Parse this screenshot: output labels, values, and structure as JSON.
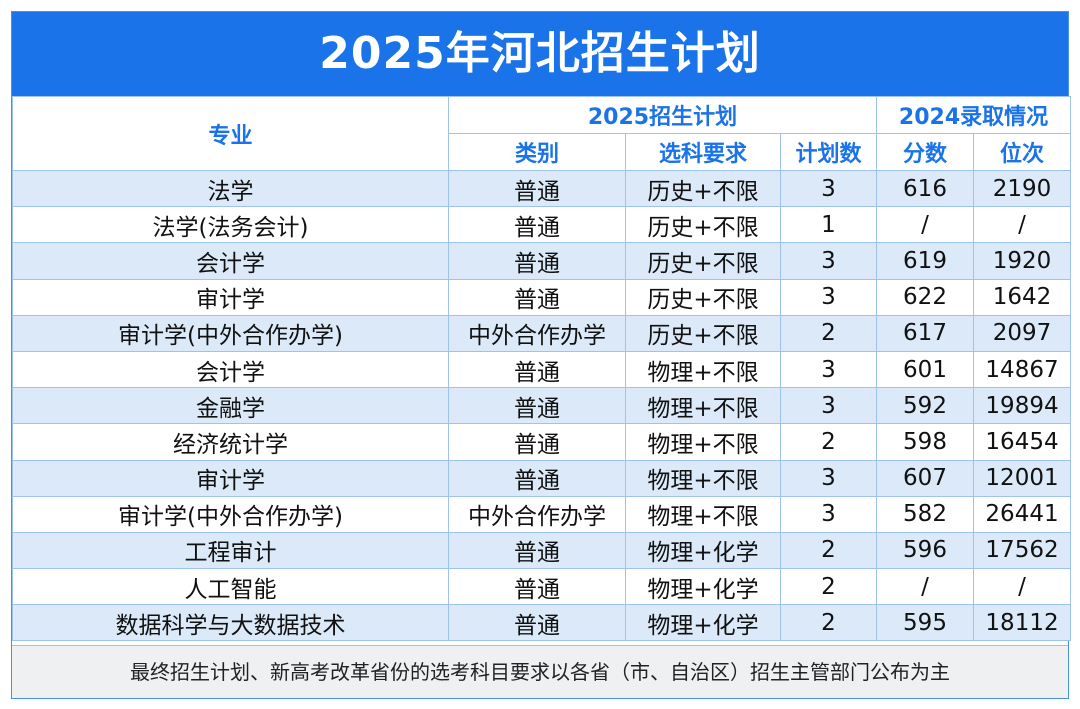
{
  "title": "2025年河北招生计划",
  "header": {
    "major": "专业",
    "plan_group": "2025招生计划",
    "admit_group": "2024录取情况",
    "category": "类别",
    "subjects": "选科要求",
    "plan_count": "计划数",
    "score": "分数",
    "rank": "位次"
  },
  "rows": [
    {
      "major": "法学",
      "category": "普通",
      "subjects": "历史+不限",
      "count": "3",
      "score": "616",
      "rank": "2190"
    },
    {
      "major": "法学(法务会计)",
      "category": "普通",
      "subjects": "历史+不限",
      "count": "1",
      "score": "/",
      "rank": "/"
    },
    {
      "major": "会计学",
      "category": "普通",
      "subjects": "历史+不限",
      "count": "3",
      "score": "619",
      "rank": "1920"
    },
    {
      "major": "审计学",
      "category": "普通",
      "subjects": "历史+不限",
      "count": "3",
      "score": "622",
      "rank": "1642"
    },
    {
      "major": "审计学(中外合作办学)",
      "category": "中外合作办学",
      "subjects": "历史+不限",
      "count": "2",
      "score": "617",
      "rank": "2097"
    },
    {
      "major": "会计学",
      "category": "普通",
      "subjects": "物理+不限",
      "count": "3",
      "score": "601",
      "rank": "14867"
    },
    {
      "major": "金融学",
      "category": "普通",
      "subjects": "物理+不限",
      "count": "3",
      "score": "592",
      "rank": "19894"
    },
    {
      "major": "经济统计学",
      "category": "普通",
      "subjects": "物理+不限",
      "count": "2",
      "score": "598",
      "rank": "16454"
    },
    {
      "major": "审计学",
      "category": "普通",
      "subjects": "物理+不限",
      "count": "3",
      "score": "607",
      "rank": "12001"
    },
    {
      "major": "审计学(中外合作办学)",
      "category": "中外合作办学",
      "subjects": "物理+不限",
      "count": "3",
      "score": "582",
      "rank": "26441"
    },
    {
      "major": "工程审计",
      "category": "普通",
      "subjects": "物理+化学",
      "count": "2",
      "score": "596",
      "rank": "17562"
    },
    {
      "major": "人工智能",
      "category": "普通",
      "subjects": "物理+化学",
      "count": "2",
      "score": "/",
      "rank": "/"
    },
    {
      "major": "数据科学与大数据技术",
      "category": "普通",
      "subjects": "物理+化学",
      "count": "2",
      "score": "595",
      "rank": "18112"
    }
  ],
  "footer": "最终招生计划、新高考改革省份的选考科目要求以各省（市、自治区）招生主管部门公布为主"
}
